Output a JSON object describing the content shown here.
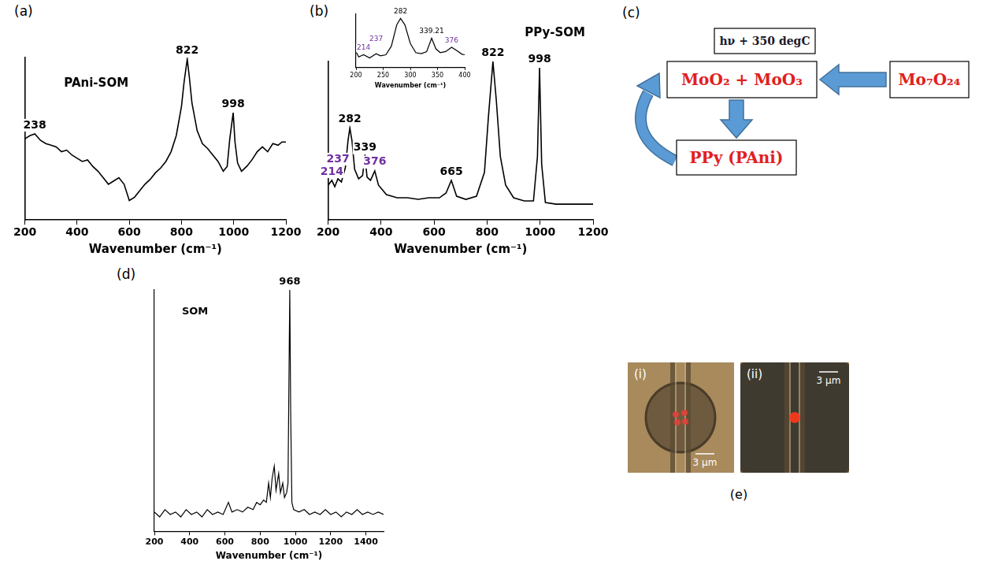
{
  "chart_data": [
    {
      "panel": "(a)",
      "type": "line",
      "title": "PAni-SOM",
      "x_label": "Wavenumber (cm⁻¹)",
      "x": [
        200,
        220,
        238,
        260,
        280,
        300,
        320,
        340,
        360,
        380,
        400,
        420,
        440,
        460,
        480,
        500,
        520,
        540,
        560,
        580,
        600,
        620,
        640,
        660,
        680,
        700,
        720,
        740,
        760,
        780,
        800,
        810,
        822,
        830,
        840,
        860,
        880,
        900,
        920,
        940,
        960,
        975,
        985,
        998,
        1005,
        1015,
        1030,
        1050,
        1070,
        1090,
        1110,
        1130,
        1150,
        1170,
        1185,
        1200
      ],
      "values": [
        50,
        52,
        53,
        49,
        47,
        46,
        45,
        42,
        43,
        40,
        38,
        36,
        37,
        33,
        30,
        26,
        22,
        24,
        26,
        22,
        12,
        14,
        18,
        22,
        25,
        29,
        32,
        36,
        42,
        52,
        70,
        85,
        99,
        88,
        72,
        55,
        47,
        44,
        40,
        36,
        30,
        33,
        50,
        66,
        48,
        35,
        30,
        33,
        37,
        42,
        45,
        42,
        47,
        46,
        48,
        48
      ],
      "color": "#000000",
      "xlim": [
        200,
        1200
      ],
      "xticks": [
        200,
        400,
        600,
        800,
        1000,
        1200
      ],
      "ylim": [
        0,
        100
      ],
      "tick_labels": "x",
      "grid": false,
      "peaks": [
        {
          "x": 238,
          "color": "#000000"
        },
        {
          "x": 822,
          "color": "#000000"
        },
        {
          "x": 998,
          "color": "#000000"
        }
      ]
    },
    {
      "panel": "(b)",
      "type": "line",
      "title": "PPy-SOM",
      "x_label": "Wavenumber (cm⁻¹)",
      "x": [
        200,
        214,
        225,
        237,
        250,
        265,
        275,
        282,
        290,
        300,
        315,
        330,
        339,
        347,
        360,
        376,
        390,
        420,
        460,
        500,
        540,
        580,
        620,
        645,
        665,
        685,
        720,
        760,
        790,
        805,
        822,
        835,
        850,
        870,
        900,
        940,
        975,
        990,
        998,
        1006,
        1020,
        1060,
        1100,
        1150,
        1200
      ],
      "values": [
        22,
        25,
        21,
        26,
        24,
        33,
        50,
        58,
        50,
        32,
        26,
        28,
        40,
        27,
        25,
        31,
        22,
        16,
        14,
        14,
        13,
        14,
        14,
        17,
        25,
        15,
        13,
        15,
        30,
        65,
        100,
        75,
        40,
        22,
        14,
        12,
        12,
        40,
        96,
        35,
        11,
        10,
        10,
        10,
        10
      ],
      "color": "#000000",
      "xlim": [
        200,
        1200
      ],
      "xticks": [
        200,
        400,
        600,
        800,
        1000,
        1200
      ],
      "ylim": [
        0,
        100
      ],
      "tick_labels": "x",
      "grid": false,
      "peaks": [
        {
          "x": 214,
          "color": "#7030a0"
        },
        {
          "x": 237,
          "color": "#7030a0"
        },
        {
          "x": 282,
          "color": "#000000"
        },
        {
          "x": 339,
          "color": "#000000"
        },
        {
          "x": 376,
          "color": "#7030a0"
        },
        {
          "x": 665,
          "color": "#000000"
        },
        {
          "x": 822,
          "color": "#000000"
        },
        {
          "x": 998,
          "color": "#000000"
        }
      ],
      "inset": {
        "type": "line",
        "x_label": "Wavenumber (cm⁻¹)",
        "x": [
          200,
          205,
          214,
          225,
          237,
          245,
          255,
          265,
          275,
          282,
          290,
          300,
          310,
          320,
          330,
          339.21,
          347,
          355,
          365,
          376,
          385,
          395,
          400
        ],
        "values": [
          30,
          20,
          24,
          18,
          26,
          22,
          24,
          40,
          80,
          92,
          80,
          45,
          28,
          26,
          30,
          55,
          35,
          28,
          30,
          38,
          32,
          25,
          24
        ],
        "color": "#000000",
        "xlim": [
          200,
          400
        ],
        "xticks": [
          200,
          250,
          300,
          350,
          400
        ],
        "ylim": [
          0,
          100
        ],
        "tick_labels": "x",
        "grid": false,
        "peaks": [
          {
            "x": 214,
            "color": "#7030a0"
          },
          {
            "x": 237,
            "color": "#7030a0"
          },
          {
            "x": 282,
            "color": "#000000"
          },
          {
            "x": 339.21,
            "color": "#000000"
          },
          {
            "x": 376,
            "color": "#7030a0"
          }
        ]
      }
    },
    {
      "panel": "(d)",
      "type": "line",
      "title": "SOM",
      "x_label": "Wavenumber (cm⁻¹)",
      "x": [
        200,
        230,
        260,
        290,
        320,
        350,
        380,
        410,
        440,
        470,
        500,
        530,
        560,
        590,
        620,
        640,
        670,
        700,
        730,
        760,
        780,
        800,
        820,
        835,
        848,
        858,
        868,
        880,
        890,
        905,
        915,
        928,
        938,
        950,
        958,
        963,
        968,
        973,
        980,
        990,
        1020,
        1050,
        1080,
        1110,
        1140,
        1170,
        1200,
        1230,
        1260,
        1290,
        1320,
        1350,
        1380,
        1410,
        1440,
        1470,
        1500
      ],
      "values": [
        8,
        6,
        9,
        7,
        8,
        6,
        9,
        7,
        8,
        6,
        9,
        7,
        8,
        7,
        12,
        8,
        9,
        8,
        10,
        9,
        12,
        11,
        13,
        12,
        20,
        14,
        22,
        27,
        17,
        24,
        16,
        20,
        14,
        16,
        20,
        60,
        100,
        50,
        12,
        9,
        8,
        9,
        7,
        8,
        7,
        9,
        7,
        8,
        6,
        8,
        7,
        9,
        7,
        8,
        7,
        8,
        7
      ],
      "color": "#000000",
      "xlim": [
        200,
        1500
      ],
      "xticks": [
        200,
        400,
        600,
        800,
        1000,
        1200,
        1400
      ],
      "ylim": [
        0,
        100
      ],
      "tick_labels": "x",
      "grid": false,
      "peaks": [
        {
          "x": 968,
          "color": "#000000"
        }
      ]
    }
  ],
  "diagram": {
    "panel": "(c)",
    "nodes": [
      {
        "label": "hν + 350 degC",
        "color": "#1a1a2e"
      },
      {
        "label": "MoO₂ + MoO₃",
        "color": "#e02020"
      },
      {
        "label": "Mo₇O₂₄",
        "color": "#e02020"
      },
      {
        "label": "PPy (PAni)",
        "color": "#e02020"
      }
    ]
  },
  "images": {
    "panel": "(e)",
    "items": [
      {
        "label": "(i)",
        "scale_bar": "3 μm"
      },
      {
        "label": "(ii)",
        "scale_bar": "3 μm"
      }
    ]
  }
}
